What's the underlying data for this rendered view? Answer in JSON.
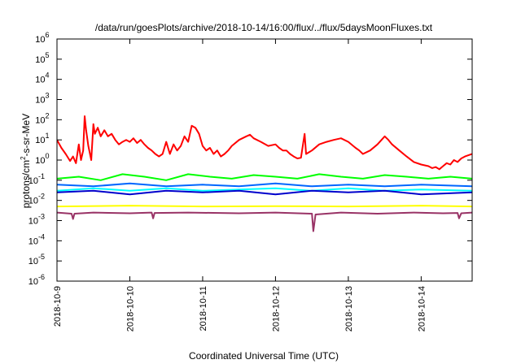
{
  "chart_data": {
    "type": "line",
    "title": "/data/run/goesPlots/archive/2018-10-14/16:00/flux/../flux/5daysMoonFluxes.txt",
    "xlabel": "Coordinated Universal Time (UTC)",
    "ylabel_parts": [
      "protons/cm",
      "2",
      "-s-sr-MeV"
    ],
    "y_scale": "log",
    "ylim_exponents": [
      -6,
      6
    ],
    "y_tick_exponents": [
      "-6",
      "-5",
      "-4",
      "-3",
      "-2",
      "-1",
      "0",
      "1",
      "2",
      "3",
      "4",
      "5",
      "6"
    ],
    "x_tick_labels": [
      "2018-10-9",
      "2018-10-10",
      "2018-10-11",
      "2018-10-12",
      "2018-10-13",
      "2018-10-14"
    ],
    "x_range_days": [
      0,
      5.7
    ],
    "grid": false,
    "series": [
      {
        "color": "#ff0000",
        "points": [
          [
            0,
            10
          ],
          [
            0.06,
            4
          ],
          [
            0.12,
            2
          ],
          [
            0.18,
            0.9
          ],
          [
            0.22,
            1.5
          ],
          [
            0.26,
            0.7
          ],
          [
            0.3,
            6
          ],
          [
            0.33,
            1
          ],
          [
            0.36,
            3
          ],
          [
            0.38,
            150
          ],
          [
            0.4,
            30
          ],
          [
            0.43,
            5
          ],
          [
            0.47,
            1
          ],
          [
            0.5,
            60
          ],
          [
            0.52,
            20
          ],
          [
            0.56,
            40
          ],
          [
            0.6,
            15
          ],
          [
            0.65,
            30
          ],
          [
            0.7,
            15
          ],
          [
            0.75,
            20
          ],
          [
            0.8,
            10
          ],
          [
            0.85,
            6
          ],
          [
            0.9,
            8
          ],
          [
            0.95,
            10
          ],
          [
            1.0,
            8
          ],
          [
            1.05,
            12
          ],
          [
            1.1,
            7
          ],
          [
            1.15,
            10
          ],
          [
            1.2,
            6
          ],
          [
            1.25,
            4
          ],
          [
            1.3,
            3
          ],
          [
            1.35,
            2
          ],
          [
            1.4,
            1.5
          ],
          [
            1.45,
            2
          ],
          [
            1.5,
            8
          ],
          [
            1.55,
            2
          ],
          [
            1.6,
            6
          ],
          [
            1.65,
            3
          ],
          [
            1.7,
            5
          ],
          [
            1.75,
            15
          ],
          [
            1.8,
            8
          ],
          [
            1.85,
            50
          ],
          [
            1.9,
            40
          ],
          [
            1.95,
            20
          ],
          [
            2.0,
            5
          ],
          [
            2.05,
            3
          ],
          [
            2.1,
            4
          ],
          [
            2.15,
            2
          ],
          [
            2.2,
            3
          ],
          [
            2.25,
            1.5
          ],
          [
            2.3,
            2
          ],
          [
            2.35,
            3
          ],
          [
            2.4,
            5
          ],
          [
            2.5,
            10
          ],
          [
            2.6,
            15
          ],
          [
            2.65,
            18
          ],
          [
            2.7,
            12
          ],
          [
            2.8,
            8
          ],
          [
            2.9,
            5
          ],
          [
            3.0,
            6
          ],
          [
            3.05,
            4
          ],
          [
            3.1,
            3
          ],
          [
            3.15,
            3
          ],
          [
            3.2,
            2
          ],
          [
            3.25,
            1.5
          ],
          [
            3.3,
            1.2
          ],
          [
            3.35,
            1.3
          ],
          [
            3.4,
            20
          ],
          [
            3.42,
            2
          ],
          [
            3.5,
            3
          ],
          [
            3.6,
            6
          ],
          [
            3.7,
            8
          ],
          [
            3.8,
            10
          ],
          [
            3.9,
            12
          ],
          [
            4.0,
            8
          ],
          [
            4.1,
            4
          ],
          [
            4.15,
            3
          ],
          [
            4.2,
            2
          ],
          [
            4.3,
            3
          ],
          [
            4.4,
            6
          ],
          [
            4.5,
            15
          ],
          [
            4.55,
            10
          ],
          [
            4.6,
            6
          ],
          [
            4.7,
            3
          ],
          [
            4.8,
            1.5
          ],
          [
            4.9,
            0.8
          ],
          [
            5.0,
            0.6
          ],
          [
            5.1,
            0.5
          ],
          [
            5.15,
            0.4
          ],
          [
            5.2,
            0.45
          ],
          [
            5.25,
            0.35
          ],
          [
            5.3,
            0.5
          ],
          [
            5.35,
            0.7
          ],
          [
            5.4,
            0.6
          ],
          [
            5.45,
            1
          ],
          [
            5.5,
            0.8
          ],
          [
            5.55,
            1.2
          ],
          [
            5.6,
            1.5
          ],
          [
            5.7,
            2
          ]
        ]
      },
      {
        "color": "#00ff00",
        "points": [
          [
            0,
            0.12
          ],
          [
            0.3,
            0.15
          ],
          [
            0.6,
            0.1
          ],
          [
            0.9,
            0.2
          ],
          [
            1.2,
            0.15
          ],
          [
            1.5,
            0.1
          ],
          [
            1.8,
            0.2
          ],
          [
            2.1,
            0.15
          ],
          [
            2.4,
            0.12
          ],
          [
            2.7,
            0.18
          ],
          [
            3.0,
            0.15
          ],
          [
            3.3,
            0.12
          ],
          [
            3.6,
            0.2
          ],
          [
            3.9,
            0.15
          ],
          [
            4.2,
            0.12
          ],
          [
            4.5,
            0.18
          ],
          [
            4.8,
            0.15
          ],
          [
            5.1,
            0.12
          ],
          [
            5.4,
            0.15
          ],
          [
            5.7,
            0.12
          ]
        ]
      },
      {
        "color": "#00ffff",
        "points": [
          [
            0,
            0.03
          ],
          [
            0.5,
            0.04
          ],
          [
            1.0,
            0.03
          ],
          [
            1.5,
            0.04
          ],
          [
            2.0,
            0.03
          ],
          [
            2.5,
            0.035
          ],
          [
            3.0,
            0.04
          ],
          [
            3.5,
            0.03
          ],
          [
            4.0,
            0.04
          ],
          [
            4.5,
            0.03
          ],
          [
            5.0,
            0.035
          ],
          [
            5.7,
            0.03
          ]
        ]
      },
      {
        "color": "#0066ff",
        "points": [
          [
            0,
            0.06
          ],
          [
            0.5,
            0.05
          ],
          [
            1.0,
            0.07
          ],
          [
            1.5,
            0.05
          ],
          [
            2.0,
            0.06
          ],
          [
            2.5,
            0.05
          ],
          [
            3.0,
            0.07
          ],
          [
            3.5,
            0.05
          ],
          [
            4.0,
            0.06
          ],
          [
            4.5,
            0.05
          ],
          [
            5.0,
            0.06
          ],
          [
            5.7,
            0.05
          ]
        ]
      },
      {
        "color": "#0000cc",
        "points": [
          [
            0,
            0.025
          ],
          [
            0.5,
            0.03
          ],
          [
            1.0,
            0.02
          ],
          [
            1.5,
            0.03
          ],
          [
            2.0,
            0.025
          ],
          [
            2.5,
            0.03
          ],
          [
            3.0,
            0.02
          ],
          [
            3.5,
            0.03
          ],
          [
            4.0,
            0.025
          ],
          [
            4.5,
            0.03
          ],
          [
            5.0,
            0.02
          ],
          [
            5.7,
            0.025
          ]
        ]
      },
      {
        "color": "#ffff00",
        "points": [
          [
            0,
            0.005
          ],
          [
            1.0,
            0.0055
          ],
          [
            2.0,
            0.005
          ],
          [
            3.0,
            0.0052
          ],
          [
            4.0,
            0.005
          ],
          [
            5.0,
            0.0055
          ],
          [
            5.7,
            0.005
          ]
        ]
      },
      {
        "color": "#993366",
        "points": [
          [
            0,
            0.0025
          ],
          [
            0.2,
            0.0022
          ],
          [
            0.22,
            0.0012
          ],
          [
            0.24,
            0.0022
          ],
          [
            0.5,
            0.0025
          ],
          [
            1.0,
            0.0023
          ],
          [
            1.3,
            0.0025
          ],
          [
            1.32,
            0.0013
          ],
          [
            1.34,
            0.0024
          ],
          [
            1.8,
            0.0025
          ],
          [
            2.5,
            0.0023
          ],
          [
            3.0,
            0.0025
          ],
          [
            3.5,
            0.0022
          ],
          [
            3.52,
            0.0003
          ],
          [
            3.55,
            0.002
          ],
          [
            3.9,
            0.0025
          ],
          [
            4.4,
            0.0022
          ],
          [
            4.9,
            0.0025
          ],
          [
            5.3,
            0.0023
          ],
          [
            5.5,
            0.0024
          ],
          [
            5.52,
            0.0013
          ],
          [
            5.55,
            0.0023
          ],
          [
            5.7,
            0.0025
          ]
        ]
      }
    ]
  }
}
